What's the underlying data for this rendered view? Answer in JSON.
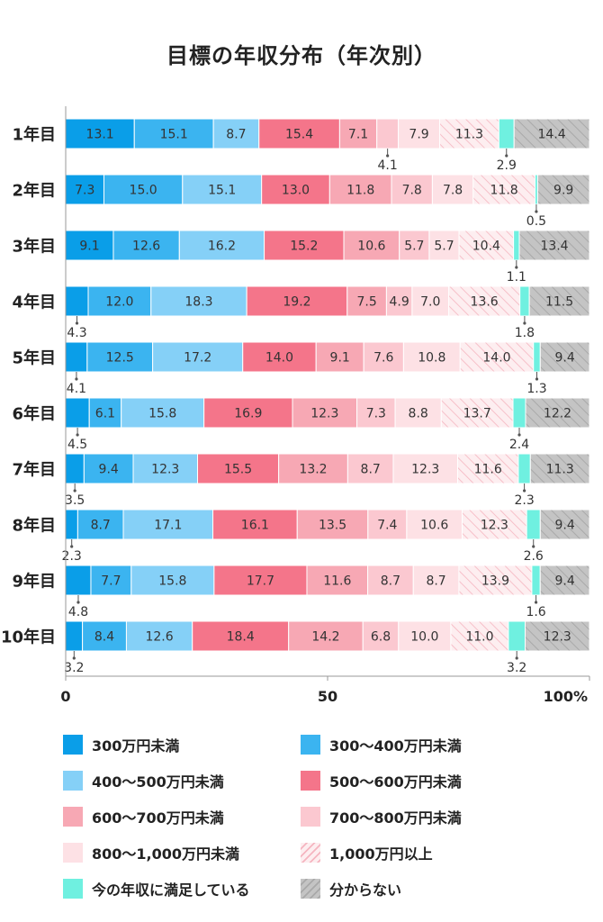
{
  "title": "目標の年収分布（年次別）",
  "chart_data": {
    "type": "bar",
    "orientation": "horizontal-stacked",
    "title": "目標の年収分布（年次別）",
    "categories": [
      "1年目",
      "2年目",
      "3年目",
      "4年目",
      "5年目",
      "6年目",
      "7年目",
      "8年目",
      "9年目",
      "10年目"
    ],
    "series": [
      {
        "name": "300万円未満",
        "color": "#0a9ee8",
        "values": [
          13.1,
          7.3,
          9.1,
          4.3,
          4.1,
          4.5,
          3.5,
          2.3,
          4.8,
          3.2
        ]
      },
      {
        "name": "300〜400万円未満",
        "color": "#3bb4f0",
        "values": [
          15.1,
          15.0,
          12.6,
          12.0,
          12.5,
          6.1,
          9.4,
          8.7,
          7.7,
          8.4
        ]
      },
      {
        "name": "400〜500万円未満",
        "color": "#85d0f7",
        "values": [
          8.7,
          15.1,
          16.2,
          18.3,
          17.2,
          15.8,
          12.3,
          17.1,
          15.8,
          12.6
        ]
      },
      {
        "name": "500〜600万円未満",
        "color": "#f4758a",
        "values": [
          15.4,
          13.0,
          15.2,
          19.2,
          14.0,
          16.9,
          15.5,
          16.1,
          17.7,
          18.4
        ]
      },
      {
        "name": "600〜700万円未満",
        "color": "#f7a8b4",
        "values": [
          7.1,
          11.8,
          10.6,
          7.5,
          9.1,
          12.3,
          13.2,
          13.5,
          11.6,
          14.2
        ]
      },
      {
        "name": "700〜800万円未満",
        "color": "#fbc8d0",
        "values": [
          4.1,
          7.8,
          5.7,
          4.9,
          7.6,
          7.3,
          8.7,
          7.4,
          8.7,
          6.8
        ]
      },
      {
        "name": "800〜1,000万円未満",
        "color": "#fde1e5",
        "values": [
          7.9,
          7.8,
          5.7,
          7.0,
          10.8,
          8.8,
          12.3,
          10.6,
          8.7,
          10.0
        ]
      },
      {
        "name": "1,000万円以上",
        "color": "#fdeef0",
        "pattern": "hatch",
        "values": [
          11.3,
          11.8,
          10.4,
          13.6,
          14.0,
          13.7,
          11.6,
          12.3,
          13.9,
          11.0
        ]
      },
      {
        "name": "今の年収に満足している",
        "color": "#6ff0e0",
        "values": [
          2.9,
          0.5,
          1.1,
          1.8,
          1.3,
          2.4,
          2.3,
          2.6,
          1.6,
          3.2
        ]
      },
      {
        "name": "分からない",
        "color": "#c4c4c4",
        "pattern": "hatch",
        "values": [
          14.4,
          9.9,
          13.4,
          11.5,
          9.4,
          12.2,
          11.3,
          9.4,
          9.4,
          12.3
        ]
      }
    ],
    "xlim": [
      0,
      100
    ],
    "xticks": [
      "0",
      "50",
      "100%"
    ],
    "outside_labels": [
      {
        "row": 0,
        "series": 5,
        "position": "below"
      },
      {
        "row": 0,
        "series": 8,
        "position": "below"
      },
      {
        "row": 1,
        "series": 8,
        "position": "below"
      },
      {
        "row": 2,
        "series": 8,
        "position": "below"
      },
      {
        "row": 3,
        "series": 0,
        "position": "below"
      },
      {
        "row": 3,
        "series": 8,
        "position": "below"
      },
      {
        "row": 4,
        "series": 0,
        "position": "below"
      },
      {
        "row": 4,
        "series": 8,
        "position": "below"
      },
      {
        "row": 5,
        "series": 0,
        "position": "below"
      },
      {
        "row": 5,
        "series": 8,
        "position": "below"
      },
      {
        "row": 6,
        "series": 0,
        "position": "below"
      },
      {
        "row": 6,
        "series": 8,
        "position": "below"
      },
      {
        "row": 7,
        "series": 0,
        "position": "below"
      },
      {
        "row": 7,
        "series": 8,
        "position": "below"
      },
      {
        "row": 8,
        "series": 0,
        "position": "below"
      },
      {
        "row": 8,
        "series": 8,
        "position": "below"
      },
      {
        "row": 9,
        "series": 0,
        "position": "below"
      },
      {
        "row": 9,
        "series": 8,
        "position": "below"
      }
    ],
    "grid": false,
    "legend_position": "bottom"
  }
}
